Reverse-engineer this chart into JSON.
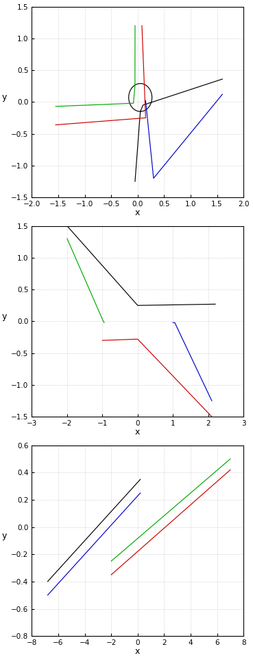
{
  "subplots": [
    {
      "xlim": [
        -2,
        2
      ],
      "ylim": [
        -1.5,
        1.5
      ],
      "xlabel": "x",
      "ylabel": "y",
      "xticks": [
        -2,
        -1.5,
        -1,
        -0.5,
        0,
        0.5,
        1,
        1.5,
        2
      ],
      "yticks": [
        -1.5,
        -1,
        -0.5,
        0,
        0.5,
        1,
        1.5
      ]
    },
    {
      "xlim": [
        -3,
        3
      ],
      "ylim": [
        -1.5,
        1.5
      ],
      "xlabel": "x",
      "ylabel": "y",
      "xticks": [
        -3,
        -2,
        -1,
        0,
        1,
        2,
        3
      ],
      "yticks": [
        -1.5,
        -1,
        -0.5,
        0,
        0.5,
        1,
        1.5
      ]
    },
    {
      "xlim": [
        -8,
        8
      ],
      "ylim": [
        -0.8,
        0.6
      ],
      "xlabel": "x",
      "ylabel": "y",
      "xticks": [
        -8,
        -6,
        -4,
        -2,
        0,
        2,
        4,
        6,
        8
      ],
      "yticks": [
        -0.8,
        -0.6,
        -0.4,
        -0.2,
        0,
        0.2,
        0.4,
        0.6
      ]
    }
  ],
  "colors": {
    "black": "#000000",
    "green": "#00aa00",
    "red": "#cc0000",
    "blue": "#0000cc"
  },
  "background": "#ffffff",
  "grid_color": "#999999"
}
